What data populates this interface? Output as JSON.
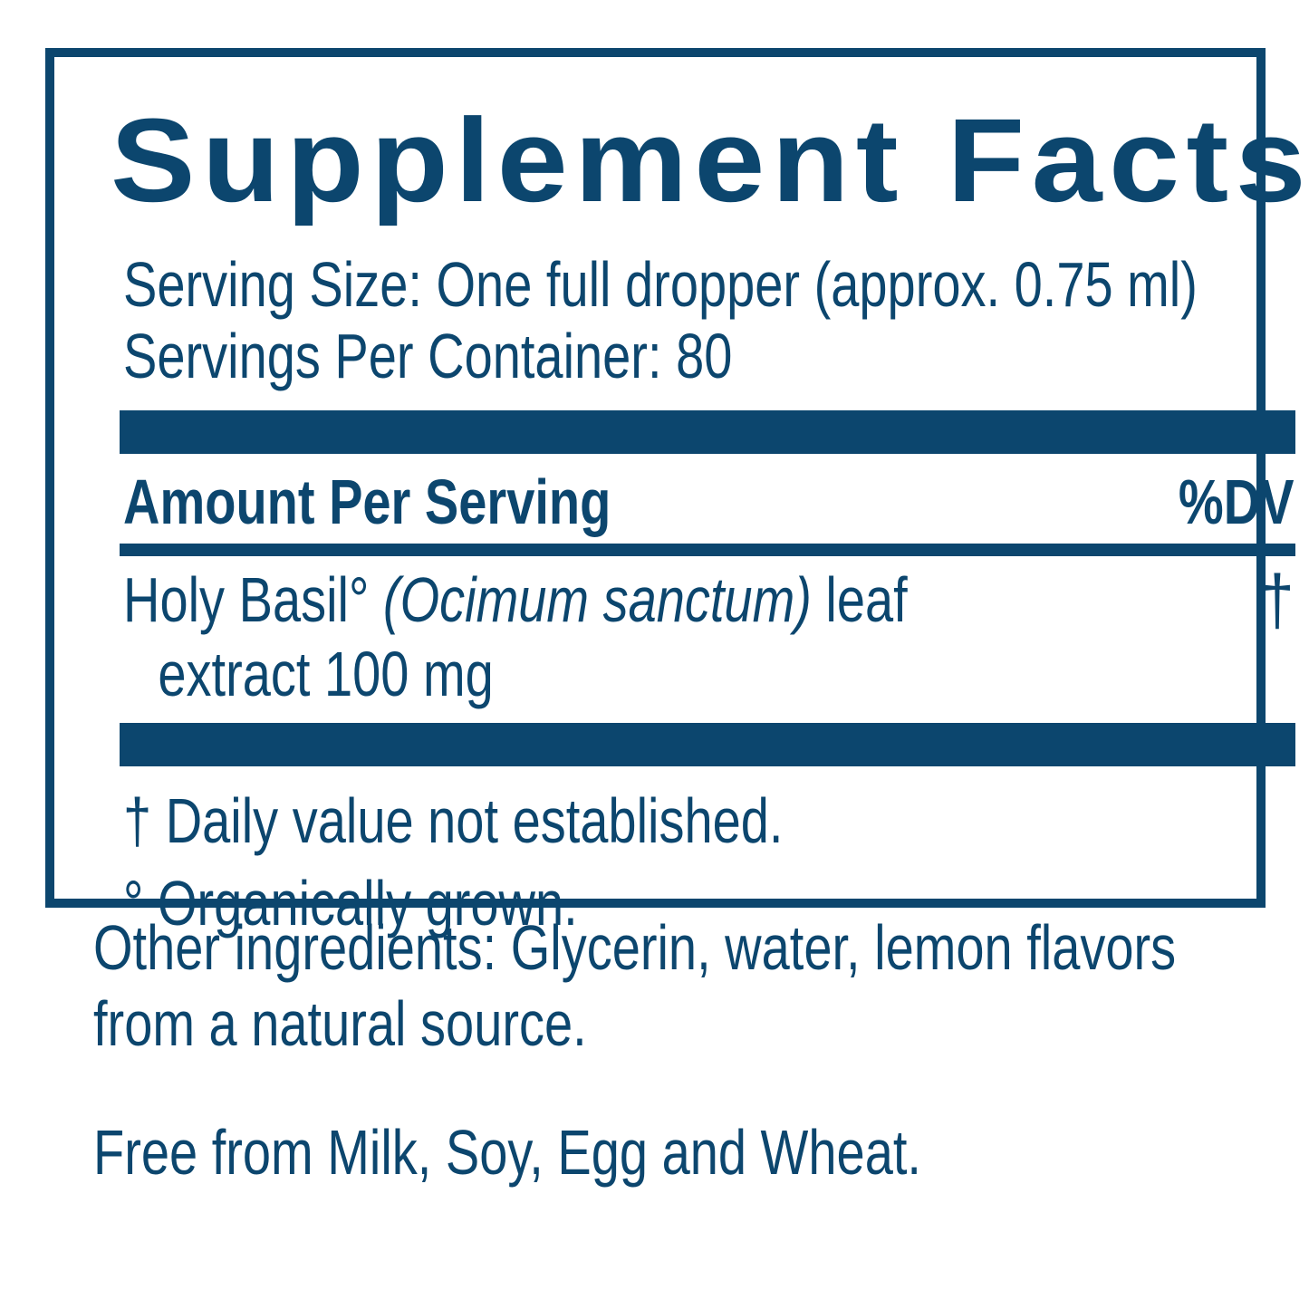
{
  "colors": {
    "navy": "#0C466E",
    "background": "#ffffff"
  },
  "panel": {
    "title": "Supplement Facts",
    "serving_size_line": "Serving Size: One full dropper (approx. 0.75 ml)",
    "servings_per_container_line": "Servings Per Container: 80",
    "column_header_left": "Amount Per Serving",
    "column_header_right": "%DV",
    "ingredient": {
      "name_prefix": "Holy Basil° ",
      "latin_italic": "(Ocimum sanctum)",
      "name_suffix": " leaf",
      "line2": "extract 100 mg",
      "dv_value": "†"
    },
    "footnotes": [
      "† Daily value not established.",
      "° Organically grown."
    ]
  },
  "below_panel": {
    "other_ingredients_line1": "Other ingredients: Glycerin, water, lemon flavors",
    "other_ingredients_line2": "from a natural source.",
    "free_from_line": "Free from Milk, Soy, Egg and Wheat."
  }
}
